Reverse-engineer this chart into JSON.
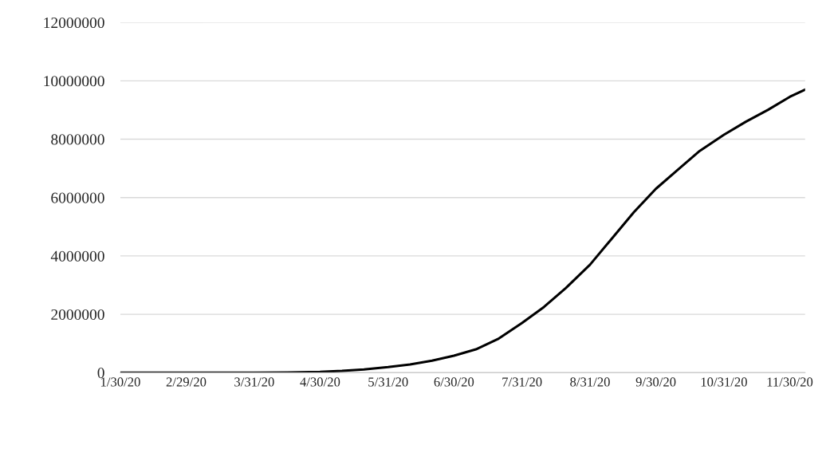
{
  "chart_data": {
    "type": "line",
    "grid": "y",
    "marker": "none",
    "line_style": "solid",
    "x": [
      "2020-01-30",
      "2020-02-15",
      "2020-03-01",
      "2020-03-15",
      "2020-03-31",
      "2020-04-15",
      "2020-04-30",
      "2020-05-10",
      "2020-05-20",
      "2020-05-31",
      "2020-06-10",
      "2020-06-20",
      "2020-06-30",
      "2020-07-10",
      "2020-07-20",
      "2020-07-31",
      "2020-08-10",
      "2020-08-20",
      "2020-08-31",
      "2020-09-10",
      "2020-09-20",
      "2020-09-30",
      "2020-10-10",
      "2020-10-20",
      "2020-10-31",
      "2020-11-10",
      "2020-11-20",
      "2020-11-30",
      "2020-12-07"
    ],
    "series": [
      {
        "color": "#000000",
        "values": [
          0,
          0,
          0,
          0,
          0,
          10000,
          30000,
          60000,
          110000,
          190000,
          280000,
          410000,
          580000,
          800000,
          1150000,
          1700000,
          2250000,
          2900000,
          3700000,
          4600000,
          5500000,
          6300000,
          6950000,
          7600000,
          8150000,
          8600000,
          9000000,
          9450000,
          9700000
        ]
      }
    ],
    "xlim": [
      "2020-01-30",
      "2020-12-07"
    ],
    "xticks": [
      {
        "value": "2020-01-30",
        "label": "1/30/20"
      },
      {
        "value": "2020-02-29",
        "label": "2/29/20"
      },
      {
        "value": "2020-03-31",
        "label": "3/31/20"
      },
      {
        "value": "2020-04-30",
        "label": "4/30/20"
      },
      {
        "value": "2020-05-31",
        "label": "5/31/20"
      },
      {
        "value": "2020-06-30",
        "label": "6/30/20"
      },
      {
        "value": "2020-07-31",
        "label": "7/31/20"
      },
      {
        "value": "2020-08-31",
        "label": "8/31/20"
      },
      {
        "value": "2020-09-30",
        "label": "9/30/20"
      },
      {
        "value": "2020-10-31",
        "label": "10/31/20"
      },
      {
        "value": "2020-11-30",
        "label": "11/30/20"
      }
    ],
    "ylim": [
      0,
      12000000
    ],
    "yticks": [
      0,
      2000000,
      4000000,
      6000000,
      8000000,
      10000000,
      12000000
    ]
  }
}
